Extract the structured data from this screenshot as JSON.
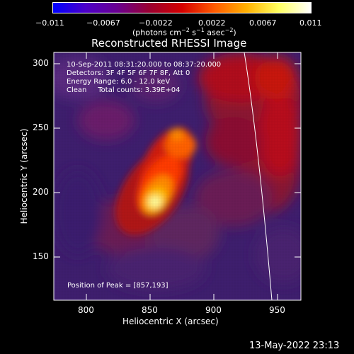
{
  "colorbar": {
    "ticks": [
      "−0.011",
      "−0.0067",
      "−0.0022",
      "0.0022",
      "0.0067",
      "0.011"
    ],
    "units_prefix": "(photons cm",
    "units_sup1": "−2",
    "units_mid1": " s",
    "units_sup2": "−1",
    "units_mid2": " asec",
    "units_sup3": "−2",
    "units_suffix": ")",
    "gradient_stops": [
      "#0000ff",
      "#4c00c8",
      "#6a0090",
      "#9a0030",
      "#d40000",
      "#ff5a00",
      "#ffb000",
      "#ffff60",
      "#ffffff"
    ]
  },
  "plot": {
    "title": "Reconstructed RHESSI Image",
    "xlabel": "Heliocentric X (arcsec)",
    "ylabel": "Heliocentric Y (arcsec)",
    "x_ticks": [
      "800",
      "850",
      "900",
      "950"
    ],
    "y_ticks": [
      "300",
      "250",
      "200",
      "150"
    ],
    "x_range": [
      775,
      968
    ],
    "y_range": [
      117,
      311
    ],
    "info_lines": [
      "10-Sep-2011 08:31:20.000 to 08:37:20.000",
      "Detectors: 3F 4F 5F 6F 7F 8F, Att 0",
      "Energy Range: 6.0 - 12.0 keV",
      "Clean     Total counts: 3.39E+04"
    ],
    "peak_text": "Position of Peak = [857,193]",
    "peak": [
      857,
      193
    ]
  },
  "timestamp": "13-May-2022 23:13"
}
